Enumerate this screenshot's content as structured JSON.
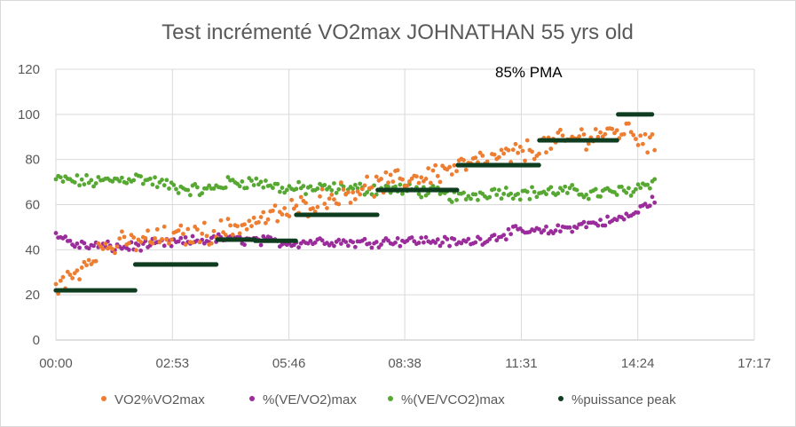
{
  "chart_data": {
    "type": "scatter",
    "title": "Test incrémenté VO2max JOHNATHAN 55 yrs old",
    "annotation": "85% PMA",
    "xlabel": "",
    "ylabel": "",
    "x_unit": "minutes (mm:ss)",
    "xlim": [
      0,
      1037
    ],
    "ylim": [
      0,
      120
    ],
    "y_ticks": [
      0,
      20,
      40,
      60,
      80,
      100,
      120
    ],
    "x_ticks": [
      0,
      173,
      346,
      518,
      691,
      864,
      1037
    ],
    "x_tick_labels": [
      "00:00",
      "02:53",
      "05:46",
      "08:38",
      "11:31",
      "14:24",
      "17:17"
    ],
    "grid": "vertical and horizontal major gridlines",
    "legend_position": "bottom",
    "series": [
      {
        "name": "VO2%VO2max",
        "color": "#ED7D31",
        "key_points": [
          [
            0,
            22
          ],
          [
            30,
            30
          ],
          [
            60,
            40
          ],
          [
            120,
            44
          ],
          [
            180,
            46
          ],
          [
            240,
            48
          ],
          [
            300,
            53
          ],
          [
            346,
            57
          ],
          [
            400,
            63
          ],
          [
            450,
            67
          ],
          [
            500,
            70
          ],
          [
            550,
            73
          ],
          [
            600,
            77
          ],
          [
            650,
            80
          ],
          [
            700,
            84
          ],
          [
            750,
            88
          ],
          [
            800,
            91
          ],
          [
            850,
            93
          ],
          [
            880,
            88
          ],
          [
            890,
            84
          ]
        ],
        "noise": 4.0
      },
      {
        "name": "%(VE/VO2)max",
        "color": "#9B2C9B",
        "key_points": [
          [
            0,
            47
          ],
          [
            30,
            42
          ],
          [
            100,
            41
          ],
          [
            173,
            43
          ],
          [
            250,
            45
          ],
          [
            300,
            44
          ],
          [
            346,
            43
          ],
          [
            400,
            44
          ],
          [
            450,
            43
          ],
          [
            500,
            44
          ],
          [
            560,
            44
          ],
          [
            600,
            43
          ],
          [
            640,
            45
          ],
          [
            680,
            48
          ],
          [
            730,
            48
          ],
          [
            780,
            51
          ],
          [
            830,
            53
          ],
          [
            860,
            56
          ],
          [
            890,
            63
          ]
        ],
        "noise": 1.8
      },
      {
        "name": "%(VE/VCO2)max",
        "color": "#56A832",
        "key_points": [
          [
            0,
            71
          ],
          [
            60,
            70
          ],
          [
            120,
            72
          ],
          [
            173,
            68
          ],
          [
            220,
            66
          ],
          [
            260,
            70
          ],
          [
            300,
            70
          ],
          [
            340,
            67
          ],
          [
            400,
            67
          ],
          [
            450,
            67
          ],
          [
            500,
            67
          ],
          [
            550,
            66
          ],
          [
            600,
            63
          ],
          [
            650,
            66
          ],
          [
            700,
            65
          ],
          [
            750,
            66
          ],
          [
            800,
            65
          ],
          [
            850,
            66
          ],
          [
            880,
            70
          ],
          [
            890,
            70
          ]
        ],
        "noise": 2.3
      },
      {
        "name": "%puissance peak",
        "color": "#0F3D1F",
        "steps": [
          {
            "x_start": 0,
            "x_end": 118,
            "value": 22
          },
          {
            "x_start": 118,
            "x_end": 240,
            "value": 33.5
          },
          {
            "x_start": 240,
            "x_end": 296,
            "value": 44.5
          },
          {
            "x_start": 296,
            "x_end": 357,
            "value": 44
          },
          {
            "x_start": 357,
            "x_end": 478,
            "value": 55.5
          },
          {
            "x_start": 478,
            "x_end": 597,
            "value": 66.5
          },
          {
            "x_start": 597,
            "x_end": 718,
            "value": 77.5
          },
          {
            "x_start": 718,
            "x_end": 835,
            "value": 88.5
          },
          {
            "x_start": 835,
            "x_end": 887,
            "value": 100
          }
        ]
      }
    ]
  }
}
